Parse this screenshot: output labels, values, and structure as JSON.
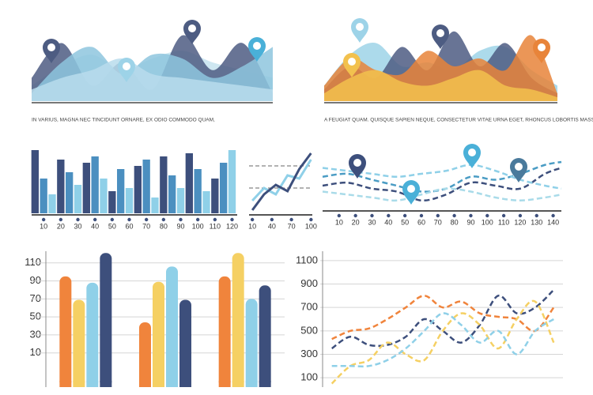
{
  "chart_data": [
    {
      "type": "area",
      "caption": "IN VARIUS, MAGNA NEC TINCIDUNT ORNARE, EX ODIO COMMODO QUAM,",
      "ylim": [
        0,
        100
      ],
      "series": [
        {
          "color": "#c5e3ef",
          "values": [
            20,
            45,
            60,
            40,
            55,
            65,
            50,
            40,
            30
          ]
        },
        {
          "color": "#4d5c82",
          "values": [
            30,
            75,
            20,
            50,
            15,
            85,
            40,
            75,
            10
          ]
        },
        {
          "color": "#8ec5de",
          "values": [
            10,
            50,
            70,
            35,
            60,
            55,
            30,
            45,
            70
          ]
        },
        {
          "color": "#b8dcec",
          "values": [
            15,
            30,
            40,
            55,
            35,
            30,
            25,
            20,
            15
          ]
        }
      ]
    },
    {
      "type": "area",
      "caption": "A FEUGIAT QUAM. QUISQUE SAPIEN NEQUE, CONSECTETUR VITAE URNA EGET, RHONCUS LOBORTIS MASSA",
      "ylim": [
        0,
        100
      ],
      "series": [
        {
          "color": "#9dd3e8",
          "values": [
            20,
            60,
            75,
            45,
            50,
            40,
            65,
            70,
            40,
            20
          ]
        },
        {
          "color": "#4d5c82",
          "values": [
            15,
            45,
            30,
            70,
            40,
            90,
            45,
            75,
            30,
            10
          ]
        },
        {
          "color": "#e8843a",
          "values": [
            20,
            55,
            40,
            35,
            65,
            45,
            55,
            40,
            85,
            10
          ]
        },
        {
          "color": "#f2c14e",
          "values": [
            10,
            30,
            40,
            25,
            20,
            30,
            40,
            20,
            15,
            5
          ]
        }
      ]
    },
    {
      "type": "bar",
      "xlim": [
        3,
        123
      ],
      "ylim": [
        0,
        100
      ],
      "xticks": [
        10,
        20,
        30,
        40,
        50,
        60,
        70,
        80,
        90,
        100,
        110,
        120
      ],
      "x": [
        5,
        10,
        15,
        20,
        25,
        30,
        35,
        40,
        45,
        50,
        55,
        60,
        65,
        70,
        75,
        80,
        85,
        90,
        95,
        100,
        105,
        110,
        115,
        120
      ],
      "values": [
        100,
        55,
        30,
        85,
        65,
        45,
        80,
        90,
        55,
        35,
        70,
        40,
        75,
        85,
        25,
        90,
        60,
        40,
        95,
        70,
        35,
        55,
        80,
        100
      ],
      "colors": [
        "#3d4f7c",
        "#4b8fc0",
        "#8fd0e8"
      ]
    },
    {
      "type": "line",
      "xlim": [
        5,
        102
      ],
      "ylim": [
        0,
        100
      ],
      "xticks": [
        10,
        40,
        70,
        100
      ],
      "hlines": [
        75,
        40
      ],
      "x": [
        10,
        28,
        46,
        64,
        82,
        100
      ],
      "series": [
        {
          "color": "#8fd0e8",
          "values": [
            20,
            40,
            30,
            60,
            55,
            85
          ]
        },
        {
          "color": "#3d4f7c",
          "values": [
            5,
            30,
            45,
            35,
            70,
            95
          ]
        }
      ]
    },
    {
      "type": "line",
      "dashed": true,
      "xlim": [
        0,
        145
      ],
      "ylim": [
        0,
        100
      ],
      "xticks": [
        10,
        20,
        30,
        40,
        50,
        60,
        70,
        80,
        90,
        100,
        110,
        120,
        130,
        140
      ],
      "x": [
        0,
        15,
        30,
        45,
        60,
        75,
        90,
        105,
        120,
        135,
        145
      ],
      "series": [
        {
          "color": "#3d4f7c",
          "values": [
            40,
            45,
            35,
            30,
            15,
            25,
            45,
            40,
            35,
            60,
            70
          ]
        },
        {
          "color": "#4a9cc4",
          "values": [
            55,
            60,
            50,
            40,
            30,
            35,
            55,
            50,
            60,
            75,
            80
          ]
        },
        {
          "color": "#8fd0e8",
          "values": [
            70,
            65,
            60,
            55,
            60,
            65,
            75,
            65,
            50,
            40,
            35
          ]
        },
        {
          "color": "#a9dbe9",
          "values": [
            30,
            25,
            20,
            15,
            25,
            35,
            30,
            20,
            15,
            20,
            25
          ]
        }
      ]
    },
    {
      "type": "bar",
      "ylim": [
        -28,
        123
      ],
      "yticks": [
        10,
        30,
        50,
        70,
        90,
        110
      ],
      "grid": true,
      "categories": [
        null,
        null,
        null
      ],
      "series": [
        {
          "color": "#f0843c",
          "values": [
            95,
            44,
            95
          ]
        },
        {
          "color": "#f5d063",
          "values": [
            69,
            89,
            121
          ]
        },
        {
          "color": "#8fd0e8",
          "values": [
            88,
            106,
            70
          ]
        },
        {
          "color": "#3d4f7c",
          "values": [
            121,
            69,
            85
          ]
        }
      ]
    },
    {
      "type": "line",
      "dashed": true,
      "ylim": [
        20,
        1180
      ],
      "yticks": [
        100,
        300,
        500,
        700,
        900,
        1100
      ],
      "grid": true,
      "categories": [
        null,
        null,
        null,
        null,
        null,
        null,
        null,
        null,
        null,
        null,
        null,
        null,
        null
      ],
      "series": [
        {
          "color": "#f0843c",
          "values": [
            430,
            500,
            520,
            600,
            700,
            800,
            700,
            750,
            650,
            620,
            600,
            500,
            700
          ]
        },
        {
          "color": "#3d4f7c",
          "values": [
            350,
            450,
            380,
            380,
            450,
            600,
            500,
            400,
            550,
            800,
            650,
            700,
            850
          ]
        },
        {
          "color": "#f5d063",
          "values": [
            50,
            200,
            250,
            400,
            300,
            250,
            500,
            650,
            550,
            350,
            600,
            750,
            400
          ]
        },
        {
          "color": "#8fd0e8",
          "values": [
            200,
            200,
            200,
            250,
            350,
            500,
            650,
            550,
            400,
            500,
            300,
            500,
            600
          ]
        }
      ]
    }
  ]
}
